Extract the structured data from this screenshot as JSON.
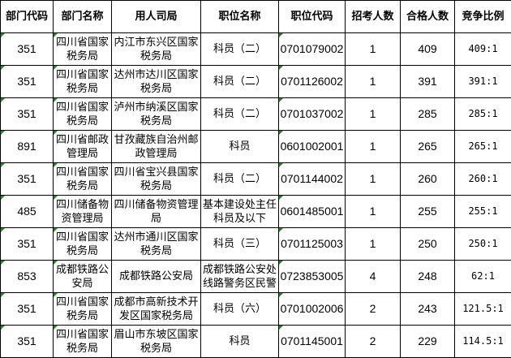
{
  "headers": [
    "部门代码",
    "部门名称",
    "用人司局",
    "职位名称",
    "职位代码",
    "招考人数",
    "合格人数",
    "竞争比例"
  ],
  "rows": [
    {
      "dept_code": "351",
      "dept_name": "四川省国家税务局",
      "bureau": "内江市东兴区国家税务局",
      "position": "科员（二）",
      "position_code": "0701079002",
      "recruit": "1",
      "qualified": "409",
      "ratio": "409:1"
    },
    {
      "dept_code": "351",
      "dept_name": "四川省国家税务局",
      "bureau": "达州市达川区国家税务局",
      "position": "科员（二）",
      "position_code": "0701126002",
      "recruit": "1",
      "qualified": "391",
      "ratio": "391:1"
    },
    {
      "dept_code": "351",
      "dept_name": "四川省国家税务局",
      "bureau": "泸州市纳溪区国家税务局",
      "position": "科员（二）",
      "position_code": "0701037002",
      "recruit": "1",
      "qualified": "285",
      "ratio": "285:1"
    },
    {
      "dept_code": "891",
      "dept_name": "四川省邮政管理局",
      "bureau": "甘孜藏族自治州邮政管理局",
      "position": "科员",
      "position_code": "0601002001",
      "recruit": "1",
      "qualified": "265",
      "ratio": "265:1"
    },
    {
      "dept_code": "351",
      "dept_name": "四川省国家税务局",
      "bureau": "四川省宝兴县国家税务局",
      "position": "科员（二）",
      "position_code": "0701144002",
      "recruit": "1",
      "qualified": "260",
      "ratio": "260:1"
    },
    {
      "dept_code": "485",
      "dept_name": "四川储备物资管理局",
      "bureau": "四川储备物资管理局",
      "position": "基本建设处主任科员及以下",
      "position_code": "0601485001",
      "recruit": "1",
      "qualified": "255",
      "ratio": "255:1"
    },
    {
      "dept_code": "351",
      "dept_name": "四川省国家税务局",
      "bureau": "达州市通川区国家税务局",
      "position": "科员（三）",
      "position_code": "0701125003",
      "recruit": "1",
      "qualified": "250",
      "ratio": "250:1"
    },
    {
      "dept_code": "853",
      "dept_name": "成都铁路公安局",
      "bureau": "成都铁路公安局",
      "position": "成都铁路公安处线路警务区民警",
      "position_code": "0723853005",
      "recruit": "4",
      "qualified": "248",
      "ratio": "62:1"
    },
    {
      "dept_code": "351",
      "dept_name": "四川省国家税务局",
      "bureau": "成都市高新技术开发区国家税务局",
      "position": "科员（六）",
      "position_code": "0701002006",
      "recruit": "2",
      "qualified": "243",
      "ratio": "121.5:1"
    },
    {
      "dept_code": "351",
      "dept_name": "四川省国家税务局",
      "bureau": "眉山市东坡区国家税务局",
      "position": "科员",
      "position_code": "0701145001",
      "recruit": "2",
      "qualified": "229",
      "ratio": "114.5:1"
    }
  ],
  "colors": {
    "border": "#000000",
    "corner_marker": "#1a8a1a"
  }
}
